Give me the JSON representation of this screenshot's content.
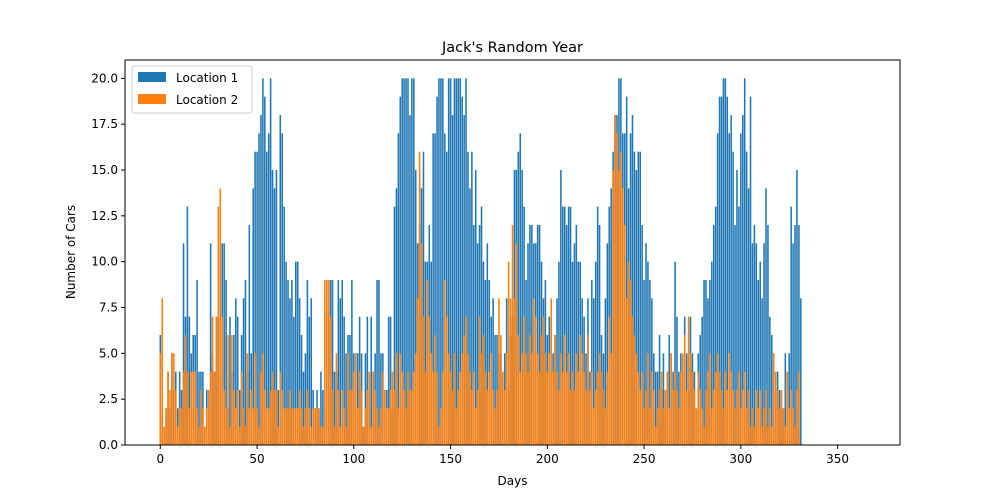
{
  "chart_data": {
    "type": "bar",
    "title": "Jack's Random Year",
    "xlabel": "Days",
    "ylabel": "Number of Cars",
    "xlim": [
      -18.25,
      382.25
    ],
    "ylim": [
      0,
      21
    ],
    "xticks": [
      0,
      50,
      100,
      150,
      200,
      250,
      300,
      350
    ],
    "yticks": [
      0.0,
      2.5,
      5.0,
      7.5,
      10.0,
      12.5,
      15.0,
      17.5,
      20.0
    ],
    "ytick_labels": [
      "0.0",
      "2.5",
      "5.0",
      "7.5",
      "10.0",
      "12.5",
      "15.0",
      "17.5",
      "20.0"
    ],
    "legend_position": "top-left",
    "grid": false,
    "x_start": 0,
    "series": [
      {
        "name": "Location 1",
        "color": "#1f77b4",
        "values": [
          6,
          2,
          1,
          2,
          4,
          2,
          5,
          3,
          4,
          2,
          4,
          3,
          11,
          7,
          13,
          7,
          5,
          6,
          6,
          9,
          4,
          4,
          4,
          1,
          3,
          2,
          11,
          5,
          4,
          7,
          7,
          4,
          11,
          11,
          9,
          2,
          7,
          4,
          6,
          8,
          7,
          3,
          6,
          8,
          9,
          4,
          12,
          5,
          14,
          16,
          16,
          17,
          18,
          20,
          19,
          16,
          17,
          20,
          15,
          14,
          15,
          3,
          18,
          17,
          13,
          10,
          9,
          8,
          9,
          7,
          10,
          10,
          8,
          6,
          4,
          5,
          9,
          7,
          8,
          3,
          2,
          3,
          2,
          4,
          3,
          2,
          7,
          9,
          9,
          9,
          4,
          4,
          9,
          8,
          9,
          7,
          5,
          6,
          6,
          9,
          5,
          5,
          5,
          7,
          5,
          1,
          5,
          7,
          2,
          7,
          4,
          5,
          9,
          9,
          5,
          5,
          3,
          3,
          7,
          7,
          2,
          13,
          14,
          17,
          19,
          20,
          20,
          20,
          20,
          18,
          20,
          20,
          15,
          11,
          12,
          14,
          16,
          10,
          10,
          12,
          10,
          17,
          17,
          19,
          20,
          20,
          20,
          17,
          16,
          20,
          20,
          18,
          20,
          20,
          20,
          20,
          19,
          18,
          20,
          16,
          14,
          16,
          12,
          15,
          11,
          12,
          13,
          10,
          9,
          11,
          9,
          7,
          8,
          6,
          6,
          5,
          5,
          4,
          5,
          8,
          3,
          6,
          7,
          15,
          15,
          16,
          17,
          15,
          13,
          9,
          11,
          12,
          12,
          11,
          11,
          12,
          12,
          10,
          8,
          9,
          6,
          7,
          7,
          5,
          6,
          8,
          10,
          15,
          13,
          13,
          12,
          13,
          13,
          10,
          11,
          12,
          10,
          10,
          8,
          7,
          5,
          8,
          4,
          9,
          8,
          10,
          13,
          12,
          6,
          5,
          8,
          11,
          13,
          14,
          16,
          18,
          18,
          20,
          20,
          17,
          17,
          19,
          14,
          17,
          18,
          16,
          15,
          16,
          16,
          12,
          9,
          11,
          10,
          9,
          8,
          5,
          4,
          4,
          6,
          3,
          5,
          3,
          4,
          6,
          5,
          4,
          10,
          7,
          4,
          5,
          4,
          7,
          5,
          3,
          7,
          5,
          4,
          2,
          5,
          6,
          7,
          9,
          9,
          8,
          9,
          10,
          12,
          13,
          17,
          19,
          19,
          20,
          20,
          19,
          17,
          18,
          16,
          12,
          15,
          13,
          17,
          18,
          20,
          16,
          14,
          19,
          11,
          12,
          11,
          9,
          10,
          8,
          11,
          14,
          12,
          7,
          6,
          5,
          3,
          4,
          3,
          2,
          2,
          5,
          4,
          5,
          13,
          11,
          12,
          15,
          12,
          8
        ]
      },
      {
        "name": "Location 2",
        "color": "#ff7f0e",
        "values": [
          5,
          8,
          1,
          2,
          4,
          3,
          5,
          5,
          3,
          1,
          2,
          2,
          4,
          6,
          4,
          2,
          4,
          4,
          4,
          2,
          1,
          3,
          2,
          1,
          2,
          3,
          4,
          7,
          4,
          7,
          13,
          14,
          7,
          3,
          2,
          6,
          1,
          6,
          3,
          2,
          3,
          1,
          4,
          2,
          1,
          5,
          2,
          3,
          2,
          5,
          2,
          1,
          4,
          5,
          3,
          2,
          2,
          3,
          4,
          3,
          3,
          1,
          4,
          3,
          2,
          2,
          2,
          3,
          2,
          2,
          2,
          2,
          3,
          2,
          1,
          2,
          3,
          2,
          1,
          2,
          2,
          2,
          2,
          1,
          1,
          9,
          9,
          9,
          7,
          3,
          1,
          5,
          3,
          1,
          3,
          2,
          1,
          5,
          3,
          3,
          4,
          5,
          2,
          4,
          3,
          1,
          2,
          3,
          4,
          1,
          4,
          3,
          2,
          1,
          2,
          4,
          3,
          2,
          2,
          3,
          4,
          3,
          5,
          2,
          5,
          4,
          3,
          2,
          4,
          3,
          3,
          4,
          5,
          8,
          16,
          11,
          7,
          4,
          9,
          7,
          5,
          4,
          6,
          4,
          1,
          2,
          4,
          9,
          7,
          5,
          4,
          3,
          5,
          2,
          3,
          4,
          5,
          6,
          7,
          5,
          4,
          3,
          4,
          2,
          3,
          7,
          5,
          6,
          4,
          3,
          4,
          5,
          3,
          2,
          3,
          8,
          6,
          4,
          3,
          5,
          10,
          8,
          12,
          8,
          11,
          6,
          4,
          5,
          7,
          5,
          4,
          6,
          5,
          8,
          7,
          5,
          4,
          6,
          7,
          5,
          4,
          5,
          8,
          4,
          6,
          4,
          3,
          5,
          4,
          6,
          4,
          5,
          3,
          4,
          3,
          5,
          4,
          6,
          5,
          4,
          3,
          6,
          3,
          4,
          2,
          3,
          4,
          5,
          4,
          3,
          2,
          4,
          7,
          5,
          15,
          18,
          17,
          15,
          16,
          14,
          12,
          8,
          10,
          9,
          7,
          6,
          5,
          4,
          3,
          4,
          2,
          3,
          5,
          2,
          4,
          3,
          1,
          2,
          3,
          4,
          2,
          3,
          4,
          2,
          5,
          3,
          4,
          3,
          2,
          4,
          5,
          6,
          3,
          7,
          5,
          4,
          3,
          2,
          4,
          3,
          2,
          1,
          3,
          4,
          5,
          2,
          3,
          4,
          5,
          4,
          3,
          2,
          4,
          3,
          5,
          4,
          3,
          2,
          3,
          4,
          2,
          3,
          4,
          2,
          3,
          1,
          2,
          1,
          3,
          2,
          3,
          1,
          2,
          3,
          1,
          2,
          1,
          5,
          4,
          3,
          2,
          3,
          2,
          1,
          4,
          2,
          3,
          2,
          1,
          3,
          4
        ]
      }
    ]
  }
}
